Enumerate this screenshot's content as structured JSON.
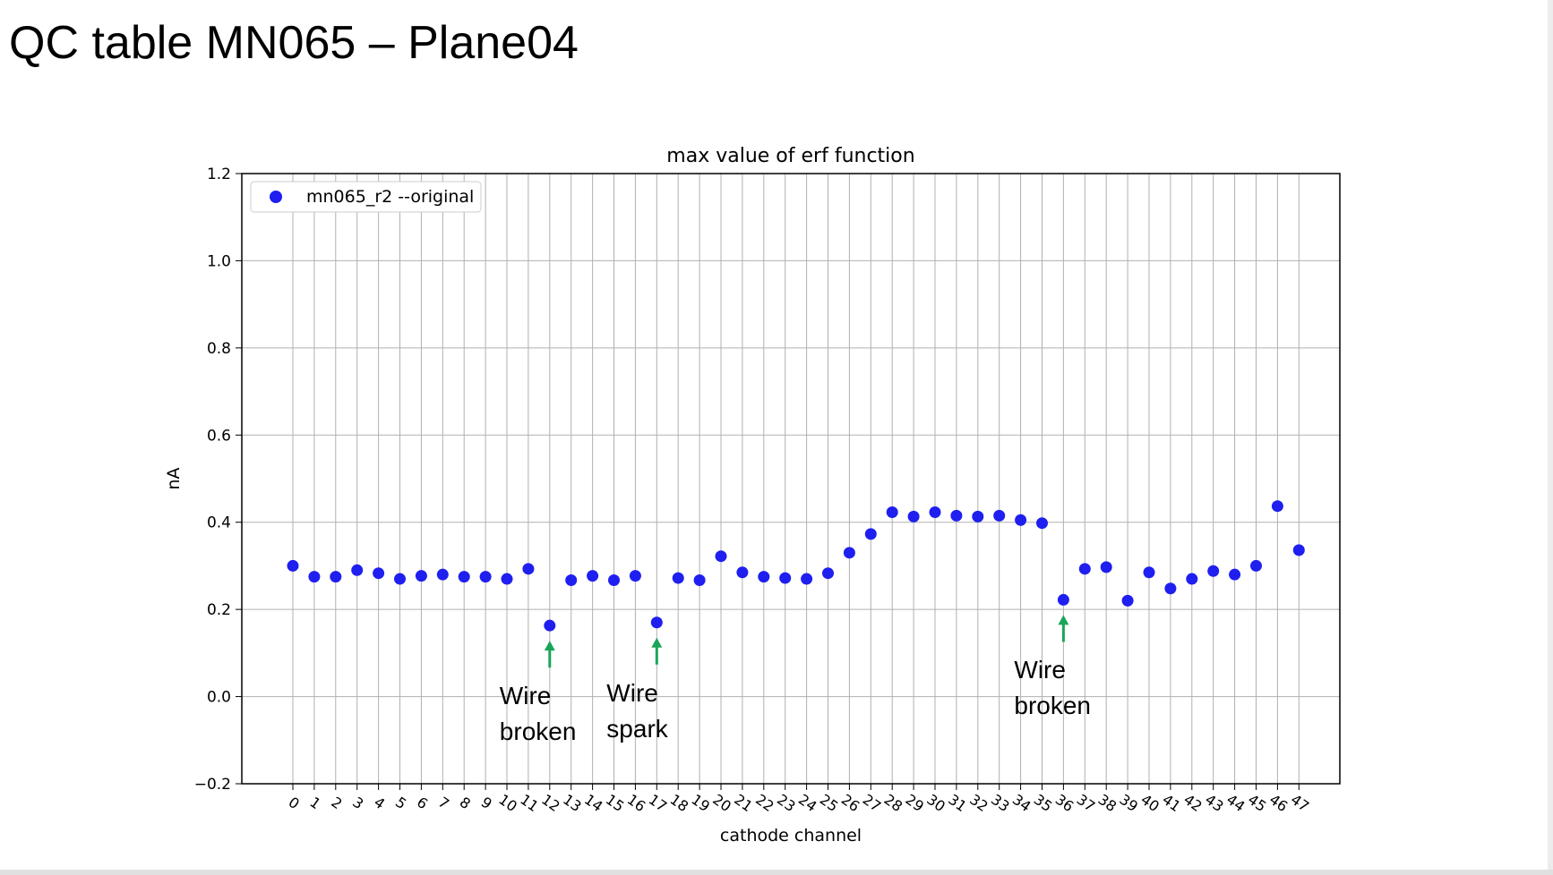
{
  "slide": {
    "title": "QC table MN065 – Plane04"
  },
  "chart_data": {
    "type": "scatter",
    "title": "max value of erf function",
    "xlabel": "cathode channel",
    "ylabel": "nA",
    "ylim": [
      -0.2,
      1.2
    ],
    "yticks": [
      "−0.2",
      "0.0",
      "0.2",
      "0.4",
      "0.6",
      "0.8",
      "1.0",
      "1.2"
    ],
    "grid": true,
    "legend_position": "top-left",
    "series_color": "#1f1ff0",
    "annotation_color": "#1aa55a",
    "x": [
      0,
      1,
      2,
      3,
      4,
      5,
      6,
      7,
      8,
      9,
      10,
      11,
      12,
      13,
      14,
      15,
      16,
      17,
      18,
      19,
      20,
      21,
      22,
      23,
      24,
      25,
      26,
      27,
      28,
      29,
      30,
      31,
      32,
      33,
      34,
      35,
      36,
      37,
      38,
      39,
      40,
      41,
      42,
      43,
      44,
      45,
      46,
      47
    ],
    "series": [
      {
        "name": "mn065_r2 --original",
        "values": [
          0.3,
          0.275,
          0.275,
          0.29,
          0.283,
          0.27,
          0.277,
          0.28,
          0.275,
          0.275,
          0.27,
          0.293,
          0.163,
          0.267,
          0.277,
          0.267,
          0.277,
          0.17,
          0.272,
          0.267,
          0.322,
          0.285,
          0.275,
          0.272,
          0.27,
          0.283,
          0.33,
          0.373,
          0.423,
          0.413,
          0.423,
          0.415,
          0.413,
          0.415,
          0.405,
          0.398,
          0.222,
          0.293,
          0.297,
          0.22,
          0.285,
          0.248,
          0.27,
          0.288,
          0.28,
          0.3,
          0.437,
          0.336
        ]
      }
    ],
    "annotations": [
      {
        "channel": 12,
        "lines": [
          "Wire",
          "broken"
        ]
      },
      {
        "channel": 17,
        "lines": [
          "Wire",
          "spark"
        ]
      },
      {
        "channel": 36,
        "lines": [
          "Wire",
          "broken"
        ]
      }
    ]
  }
}
